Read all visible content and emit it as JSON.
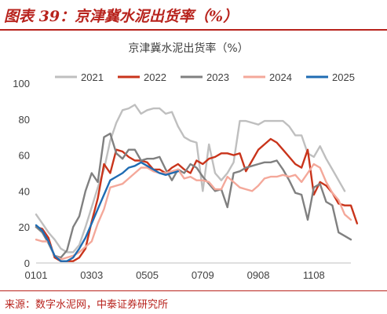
{
  "figure": {
    "caption": "图表 39：京津冀水泥出货率（%）",
    "source": "来源：数字水泥网，中泰证券研究所",
    "colors": {
      "caption": "#b8231d"
    }
  },
  "chart_data": {
    "type": "line",
    "title": "京津冀水泥出货率（%）",
    "xlabel": "",
    "ylabel": "",
    "ylim": [
      0,
      100
    ],
    "yticks": [
      0,
      20,
      40,
      60,
      80,
      100
    ],
    "xlim": [
      1,
      52
    ],
    "xtick_positions": [
      1,
      10,
      19,
      28,
      37,
      46
    ],
    "xtick_labels": [
      "0101",
      "0303",
      "0505",
      "0709",
      "0908",
      "1108"
    ],
    "grid": false,
    "legend_position": "top",
    "series": [
      {
        "name": "2021",
        "color": "#bfbfbf",
        "values": [
          27,
          22,
          17,
          13,
          8,
          6,
          6,
          10,
          20,
          31,
          42,
          52,
          68,
          78,
          85,
          86,
          88,
          83,
          85,
          86,
          86,
          83,
          84,
          76,
          70,
          68,
          67,
          40,
          66,
          50,
          46,
          50,
          56,
          79,
          79,
          78,
          77,
          79,
          79,
          79,
          79,
          76,
          71,
          71,
          61,
          59,
          65,
          58,
          52,
          46,
          40,
          null
        ]
      },
      {
        "name": "2022",
        "color": "#c9341b",
        "values": [
          20,
          19,
          14,
          3,
          1,
          1,
          1,
          3,
          8,
          23,
          36,
          55,
          50,
          63,
          62,
          59,
          57,
          57,
          56,
          52,
          52,
          50,
          53,
          55,
          52,
          50,
          57,
          55,
          58,
          59,
          61,
          61,
          60,
          61,
          51,
          57,
          63,
          66,
          69,
          67,
          63,
          59,
          55,
          53,
          63,
          38,
          45,
          43,
          39,
          33,
          32,
          32,
          22
        ]
      },
      {
        "name": "2023",
        "color": "#808080",
        "values": [
          20,
          17,
          11,
          4,
          3,
          7,
          20,
          26,
          40,
          50,
          45,
          70,
          72,
          61,
          58,
          63,
          63,
          57,
          58,
          58,
          59,
          52,
          46,
          52,
          50,
          55,
          53,
          48,
          44,
          40,
          41,
          31,
          50,
          51,
          53,
          54,
          55,
          56,
          56,
          57,
          52,
          46,
          39,
          38,
          24,
          42,
          44,
          34,
          32,
          17,
          15,
          13
        ]
      },
      {
        "name": "2024",
        "color": "#f4a89a",
        "values": [
          13,
          12,
          12,
          4,
          2,
          3,
          4,
          6,
          9,
          12,
          22,
          30,
          42,
          43,
          44,
          47,
          50,
          53,
          53,
          51,
          50,
          50,
          51,
          52,
          47,
          48,
          46,
          46,
          45,
          41,
          41,
          48,
          45,
          42,
          41,
          40,
          43,
          47,
          48,
          48,
          49,
          48,
          49,
          45,
          50,
          55,
          53,
          45,
          39,
          35,
          27,
          24
        ]
      },
      {
        "name": "2025",
        "color": "#1f6cb3",
        "values": [
          21,
          18,
          12,
          4,
          1,
          1,
          3,
          8,
          14,
          22,
          30,
          38,
          46,
          48,
          50,
          53,
          54,
          56,
          54,
          52,
          50,
          49,
          50,
          51,
          null,
          null,
          null,
          null,
          null,
          null,
          null,
          null,
          null,
          null,
          null,
          null,
          null,
          null,
          null,
          null,
          null,
          null,
          null,
          null,
          null,
          null,
          null,
          null,
          null,
          null,
          null,
          null
        ]
      }
    ]
  }
}
